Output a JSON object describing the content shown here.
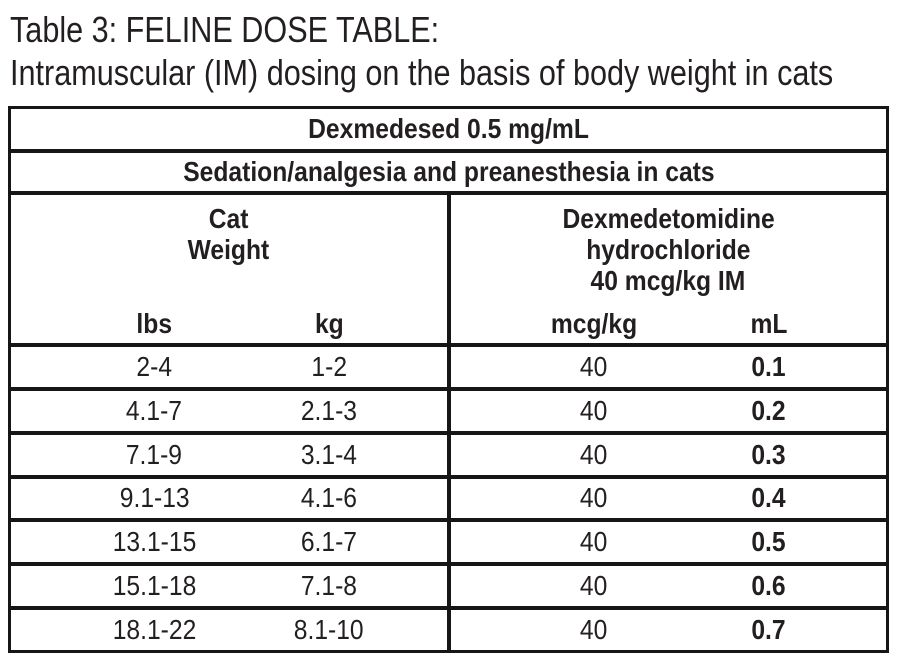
{
  "title": {
    "line1": "Table 3: FELINE DOSE TABLE:",
    "line2": "Intramuscular (IM) dosing on the basis of body weight in cats"
  },
  "table": {
    "product_banner": "Dexmedesed 0.5 mg/mL",
    "indication_banner": "Sedation/analgesia and preanesthesia in cats",
    "weight_group": {
      "line1": "Cat",
      "line2": "Weight",
      "col1": "lbs",
      "col2": "kg"
    },
    "dose_group": {
      "line1": "Dexmedetomidine",
      "line2": "hydrochloride",
      "line3": "40 mcg/kg IM",
      "col1": "mcg/kg",
      "col2": "mL"
    },
    "rows": [
      {
        "lbs": "2-4",
        "kg": "1-2",
        "mcg": "40",
        "ml": "0.1"
      },
      {
        "lbs": "4.1-7",
        "kg": "2.1-3",
        "mcg": "40",
        "ml": "0.2"
      },
      {
        "lbs": "7.1-9",
        "kg": "3.1-4",
        "mcg": "40",
        "ml": "0.3"
      },
      {
        "lbs": "9.1-13",
        "kg": "4.1-6",
        "mcg": "40",
        "ml": "0.4"
      },
      {
        "lbs": "13.1-15",
        "kg": "6.1-7",
        "mcg": "40",
        "ml": "0.5"
      },
      {
        "lbs": "15.1-18",
        "kg": "7.1-8",
        "mcg": "40",
        "ml": "0.6"
      },
      {
        "lbs": "18.1-22",
        "kg": "8.1-10",
        "mcg": "40",
        "ml": "0.7"
      }
    ],
    "ink_color": "#231f20",
    "line_color": "#161616"
  }
}
